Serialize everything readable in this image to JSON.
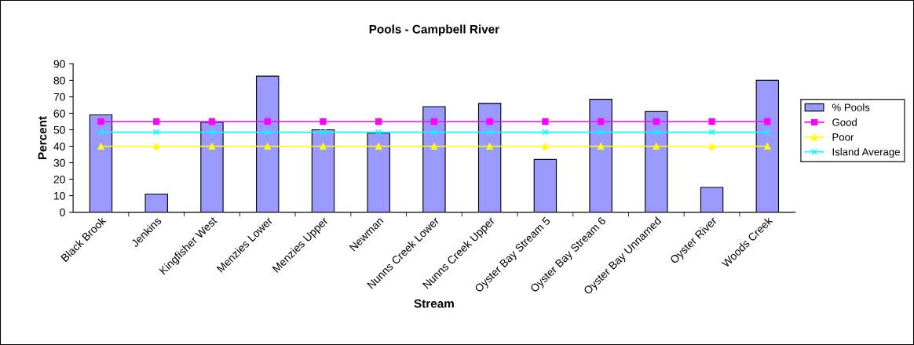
{
  "chart_data": {
    "type": "bar",
    "title": "Pools - Campbell River",
    "xlabel": "Stream",
    "ylabel": "Percent",
    "categories": [
      "Black Brook",
      "Jenkins",
      "Kingfisher West",
      "Menzies Lower",
      "Menzies Upper",
      "Newman",
      "Nunns Creek Lower",
      "Nunns Creek Upper",
      "Oyster Bay Stream 5",
      "Oyster Bay Stream 6",
      "Oyster Bay Unnamed",
      "Oyster River",
      "Woods Creek"
    ],
    "series": [
      {
        "name": "% Pools",
        "color": "#9999ff",
        "values": [
          59,
          11,
          54.5,
          82.5,
          50,
          48,
          64,
          66,
          32,
          68.5,
          61,
          15,
          80
        ]
      },
      {
        "name": "Good",
        "type": "line",
        "color": "#ff00ff",
        "marker": "square",
        "values": [
          55,
          55,
          55,
          55,
          55,
          55,
          55,
          55,
          55,
          55,
          55,
          55,
          55
        ]
      },
      {
        "name": "Poor",
        "type": "line",
        "color": "#ffff00",
        "marker": "triangle",
        "values": [
          40,
          40,
          40,
          40,
          40,
          40,
          40,
          40,
          40,
          40,
          40,
          40,
          40
        ]
      },
      {
        "name": "Island Average",
        "type": "line",
        "color": "#00ffff",
        "marker": "cross",
        "values": [
          48.5,
          48.5,
          48.5,
          48.5,
          48.5,
          48.5,
          48.5,
          48.5,
          48.5,
          48.5,
          48.5,
          48.5,
          48.5
        ]
      }
    ],
    "ylim": [
      0,
      90
    ],
    "yticks": [
      0,
      10,
      20,
      30,
      40,
      50,
      60,
      70,
      80,
      90
    ],
    "grid": false,
    "legend": "right"
  }
}
